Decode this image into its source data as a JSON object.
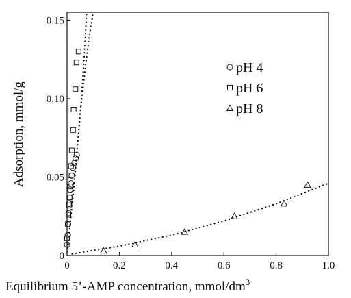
{
  "chart_data": {
    "type": "scatter",
    "title": "",
    "xlabel": "Equilibrium 5’-AMP concentration, mmol/dm",
    "xlabel_superscript": "3",
    "ylabel": "Adsorption, mmol/g",
    "xlim": [
      0,
      1.0
    ],
    "ylim": [
      0,
      0.155
    ],
    "x_ticks": [
      "0",
      "0.2",
      "0.4",
      "0.6",
      "0.8",
      "1.0"
    ],
    "y_ticks": [
      "0",
      "0.05",
      "0.10",
      "0.15"
    ],
    "grid": false,
    "legend_position": "top-right",
    "series": [
      {
        "name": "pH 4",
        "marker": "circle",
        "points": [
          [
            0.0,
            0.007
          ],
          [
            0.003,
            0.013
          ],
          [
            0.004,
            0.02
          ],
          [
            0.006,
            0.027
          ],
          [
            0.008,
            0.033
          ],
          [
            0.01,
            0.037
          ],
          [
            0.012,
            0.042
          ],
          [
            0.015,
            0.046
          ],
          [
            0.018,
            0.051
          ],
          [
            0.022,
            0.056
          ],
          [
            0.028,
            0.059
          ],
          [
            0.033,
            0.062
          ],
          [
            0.037,
            0.064
          ]
        ],
        "fit": [
          [
            0.0,
            0.0
          ],
          [
            0.02,
            0.035
          ],
          [
            0.035,
            0.061
          ],
          [
            0.045,
            0.08
          ],
          [
            0.055,
            0.1
          ],
          [
            0.065,
            0.125
          ],
          [
            0.075,
            0.155
          ]
        ]
      },
      {
        "name": "pH 6",
        "marker": "square",
        "points": [
          [
            0.0,
            0.011
          ],
          [
            0.003,
            0.02
          ],
          [
            0.005,
            0.026
          ],
          [
            0.007,
            0.032
          ],
          [
            0.01,
            0.037
          ],
          [
            0.012,
            0.044
          ],
          [
            0.013,
            0.051
          ],
          [
            0.015,
            0.057
          ],
          [
            0.018,
            0.067
          ],
          [
            0.023,
            0.08
          ],
          [
            0.025,
            0.093
          ],
          [
            0.032,
            0.106
          ],
          [
            0.036,
            0.123
          ],
          [
            0.044,
            0.13
          ]
        ],
        "fit": [
          [
            0.0,
            0.0
          ],
          [
            0.03,
            0.05
          ],
          [
            0.05,
            0.09
          ],
          [
            0.07,
            0.12
          ],
          [
            0.085,
            0.14
          ],
          [
            0.1,
            0.155
          ]
        ]
      },
      {
        "name": "pH 8",
        "marker": "triangle",
        "points": [
          [
            0.14,
            0.003
          ],
          [
            0.26,
            0.007
          ],
          [
            0.45,
            0.015
          ],
          [
            0.64,
            0.025
          ],
          [
            0.83,
            0.033
          ],
          [
            0.92,
            0.045
          ]
        ],
        "fit": [
          [
            0.02,
            0.001
          ],
          [
            0.2,
            0.006
          ],
          [
            0.4,
            0.013
          ],
          [
            0.6,
            0.022
          ],
          [
            0.8,
            0.033
          ],
          [
            1.0,
            0.046
          ]
        ]
      }
    ]
  }
}
